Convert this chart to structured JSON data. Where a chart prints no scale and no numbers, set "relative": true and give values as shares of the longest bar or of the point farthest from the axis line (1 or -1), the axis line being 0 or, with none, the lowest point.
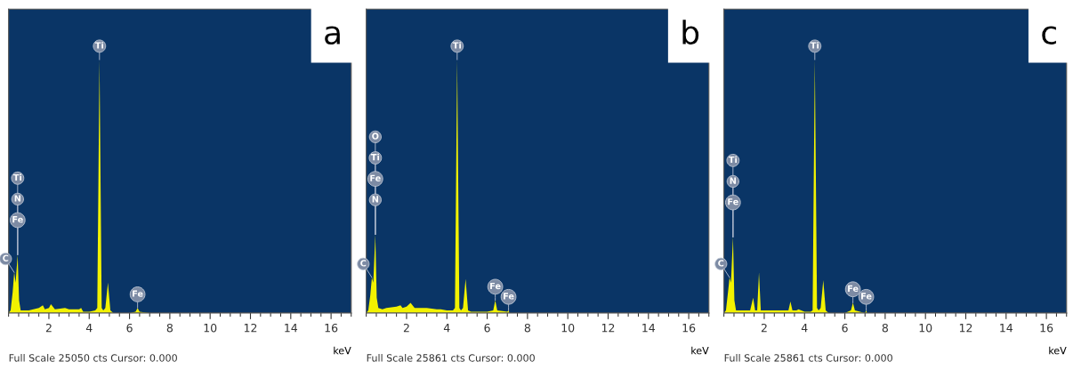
{
  "chart_data": [
    {
      "type": "area",
      "title": "a",
      "xlabel": "keV",
      "relative": true,
      "xlim": [
        0,
        17
      ],
      "xticks": [
        2,
        4,
        6,
        8,
        10,
        12,
        14,
        16
      ],
      "x": [
        0,
        0.1,
        0.2,
        0.28,
        0.35,
        0.45,
        0.52,
        0.6,
        0.8,
        1.0,
        1.5,
        1.7,
        1.8,
        2.0,
        2.1,
        2.3,
        2.8,
        3.0,
        3.5,
        3.6,
        3.7,
        4.0,
        4.3,
        4.4,
        4.51,
        4.62,
        4.7,
        4.8,
        4.93,
        5.05,
        5.2,
        6.0,
        6.3,
        6.4,
        6.5,
        7.0,
        17.0
      ],
      "series": [
        {
          "color": "#f2f200",
          "values": [
            0,
            0.01,
            0.08,
            0.16,
            0.12,
            0.23,
            0.05,
            0.01,
            0.01,
            0.01,
            0.02,
            0.03,
            0.015,
            0.02,
            0.035,
            0.015,
            0.02,
            0.015,
            0.015,
            0.02,
            0.005,
            0.005,
            0.01,
            0.02,
            1,
            0.02,
            0.01,
            0.02,
            0.12,
            0.01,
            0,
            0,
            0.005,
            0.02,
            0.005,
            0,
            0
          ]
        }
      ],
      "annotations": [
        {
          "text": "Ti",
          "x": 4.51,
          "y": 1
        },
        {
          "text": "C",
          "x": 0.28,
          "y": 0.16
        },
        {
          "text": "Fe",
          "x": 0.45,
          "y": 0.23
        },
        {
          "text": "N",
          "x": 0.45,
          "y": 0.23
        },
        {
          "text": "Ti",
          "x": 0.45,
          "y": 0.23
        },
        {
          "text": "Fe",
          "x": 6.4,
          "y": 0.02
        },
        "Full Scale 25050 cts Cursor: 0.000"
      ]
    },
    {
      "type": "area",
      "title": "b",
      "xlabel": "keV",
      "relative": true,
      "xlim": [
        0,
        17
      ],
      "xticks": [
        2,
        4,
        6,
        8,
        10,
        12,
        14,
        16
      ],
      "x": [
        0,
        0.1,
        0.2,
        0.28,
        0.35,
        0.45,
        0.52,
        0.6,
        0.8,
        1.0,
        1.5,
        1.7,
        1.8,
        2.0,
        2.2,
        2.4,
        2.8,
        3.0,
        3.5,
        3.7,
        4.0,
        4.3,
        4.4,
        4.51,
        4.62,
        4.7,
        4.8,
        4.93,
        5.05,
        5.2,
        5.6,
        6.0,
        6.3,
        6.4,
        6.5,
        7.0,
        7.06,
        7.1,
        17.0
      ],
      "series": [
        {
          "color": "#f2f200",
          "values": [
            0,
            0.01,
            0.07,
            0.14,
            0.12,
            0.31,
            0.06,
            0.02,
            0.015,
            0.02,
            0.025,
            0.03,
            0.02,
            0.025,
            0.04,
            0.02,
            0.02,
            0.02,
            0.015,
            0.015,
            0.01,
            0.01,
            0.02,
            1,
            0.02,
            0.01,
            0.02,
            0.135,
            0.01,
            0.005,
            0.005,
            0.005,
            0.01,
            0.05,
            0.01,
            0.005,
            0.01,
            0,
            0
          ]
        }
      ],
      "annotations": [
        {
          "text": "Ti",
          "x": 4.51,
          "y": 1
        },
        {
          "text": "C",
          "x": 0.28,
          "y": 0.14
        },
        {
          "text": "N",
          "x": 0.45,
          "y": 0.31
        },
        {
          "text": "Fe",
          "x": 0.45,
          "y": 0.31
        },
        {
          "text": "Ti",
          "x": 0.45,
          "y": 0.31
        },
        {
          "text": "O",
          "x": 0.45,
          "y": 0.31
        },
        {
          "text": "Fe",
          "x": 6.4,
          "y": 0.05
        },
        {
          "text": "Fe",
          "x": 7.06,
          "y": 0.01
        },
        "Full Scale 25861 cts Cursor: 0.000"
      ]
    },
    {
      "type": "area",
      "title": "c",
      "xlabel": "keV",
      "relative": true,
      "xlim": [
        0,
        17
      ],
      "xticks": [
        2,
        4,
        6,
        8,
        10,
        12,
        14,
        16
      ],
      "x": [
        0,
        0.1,
        0.2,
        0.28,
        0.35,
        0.45,
        0.52,
        0.6,
        0.8,
        1.0,
        1.3,
        1.45,
        1.55,
        1.65,
        1.74,
        1.83,
        2.0,
        2.5,
        3.0,
        3.2,
        3.3,
        3.4,
        3.6,
        3.7,
        4.0,
        4.3,
        4.4,
        4.51,
        4.62,
        4.7,
        4.8,
        4.93,
        5.05,
        5.2,
        6.0,
        6.3,
        6.4,
        6.5,
        7.0,
        7.06,
        7.1,
        17.0
      ],
      "series": [
        {
          "color": "#f2f200",
          "values": [
            0,
            0.01,
            0.08,
            0.14,
            0.12,
            0.3,
            0.05,
            0.01,
            0.01,
            0.01,
            0.01,
            0.06,
            0.01,
            0.01,
            0.16,
            0.01,
            0.01,
            0.01,
            0.01,
            0.01,
            0.045,
            0.01,
            0.01,
            0.015,
            0.005,
            0.005,
            0.01,
            1,
            0.02,
            0.01,
            0.02,
            0.13,
            0.01,
            0,
            0,
            0.01,
            0.04,
            0.01,
            0,
            0.01,
            0,
            0
          ]
        }
      ],
      "annotations": [
        {
          "text": "Ti",
          "x": 4.51,
          "y": 1
        },
        {
          "text": "C",
          "x": 0.28,
          "y": 0.14
        },
        {
          "text": "Fe",
          "x": 0.45,
          "y": 0.3
        },
        {
          "text": "N",
          "x": 0.45,
          "y": 0.3
        },
        {
          "text": "Ti",
          "x": 0.45,
          "y": 0.3
        },
        {
          "text": "Fe",
          "x": 6.4,
          "y": 0.04
        },
        {
          "text": "Fe",
          "x": 7.06,
          "y": 0.01
        },
        "Full Scale 25861 cts Cursor: 0.000"
      ]
    }
  ]
}
